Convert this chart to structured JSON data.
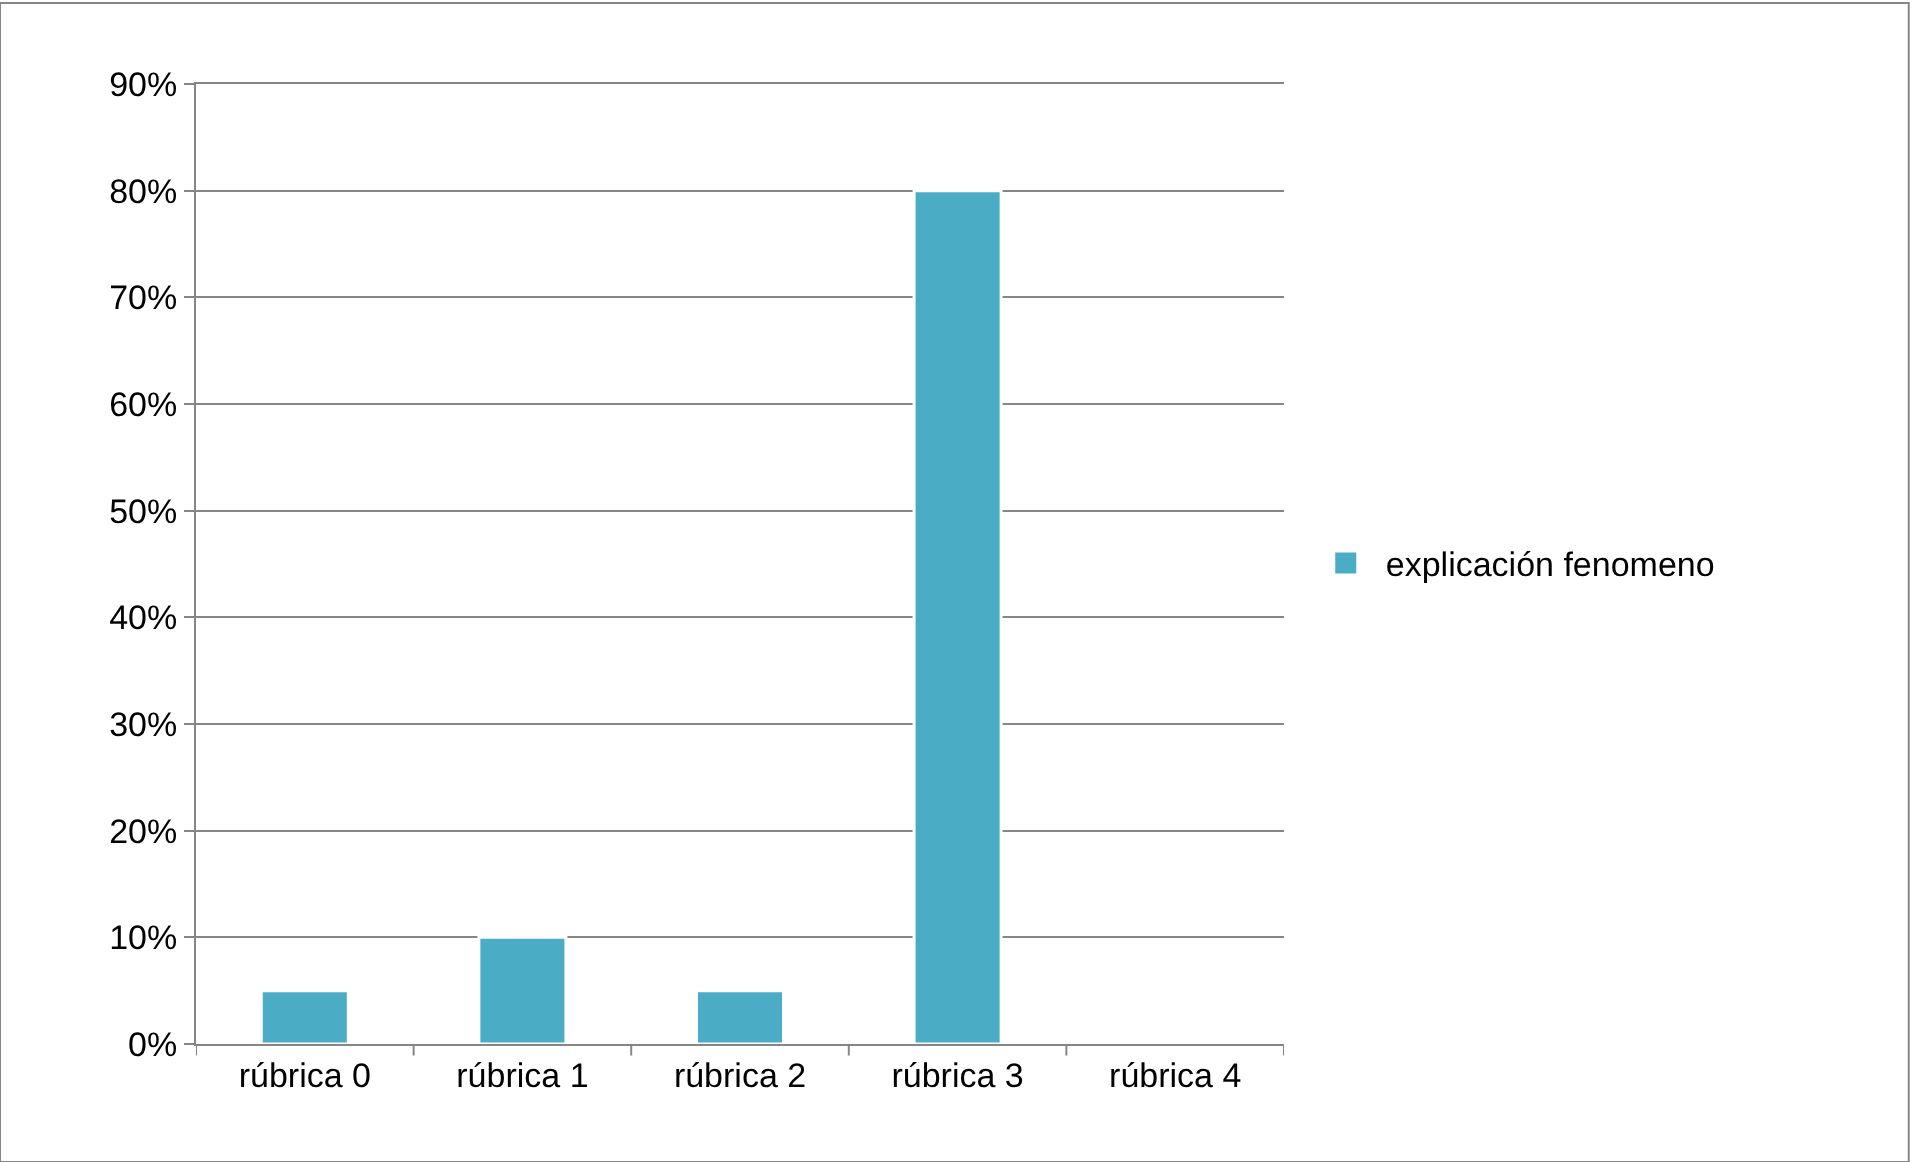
{
  "chart_data": {
    "type": "bar",
    "categories": [
      "rúbrica 0",
      "rúbrica 1",
      "rúbrica 2",
      "rúbrica 3",
      "rúbrica 4"
    ],
    "series": [
      {
        "name": "explicación fenomeno",
        "color": "#4bacc6",
        "values": [
          5,
          10,
          5,
          80,
          null
        ]
      }
    ],
    "ylim": [
      0,
      90
    ],
    "yticks": [
      {
        "value": 0,
        "label": "0%"
      },
      {
        "value": 10,
        "label": "10%"
      },
      {
        "value": 20,
        "label": "20%"
      },
      {
        "value": 30,
        "label": "30%"
      },
      {
        "value": 40,
        "label": "40%"
      },
      {
        "value": 50,
        "label": "50%"
      },
      {
        "value": 60,
        "label": "60%"
      },
      {
        "value": 70,
        "label": "70%"
      },
      {
        "value": 80,
        "label": "80%"
      },
      {
        "value": 90,
        "label": "90%"
      }
    ],
    "grid": "y",
    "legend": "right"
  }
}
